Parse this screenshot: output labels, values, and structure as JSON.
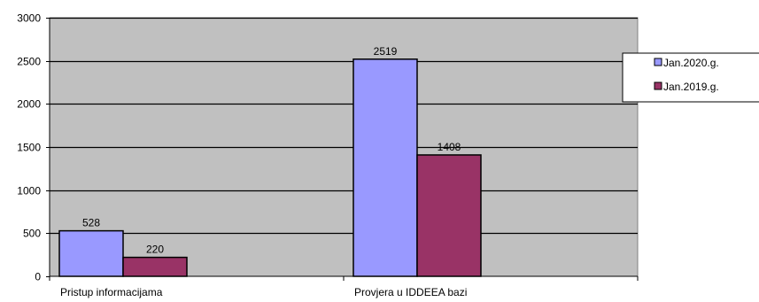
{
  "chart_data": {
    "type": "bar",
    "title": "",
    "xlabel": "",
    "ylabel": "",
    "categories": [
      "Pristup informacijama",
      "Provjera u IDDEEA bazi"
    ],
    "series": [
      {
        "name": "Jan.2020.g.",
        "color": "#9999ff",
        "values": [
          528,
          2519
        ]
      },
      {
        "name": "Jan.2019.g.",
        "color": "#993366",
        "values": [
          220,
          1408
        ]
      }
    ],
    "ylim": [
      0,
      3000
    ],
    "yticks": [
      0,
      500,
      1000,
      1500,
      2000,
      2500,
      3000
    ],
    "grid": true,
    "plot_background": "#c0c0c0",
    "legend": "right"
  }
}
